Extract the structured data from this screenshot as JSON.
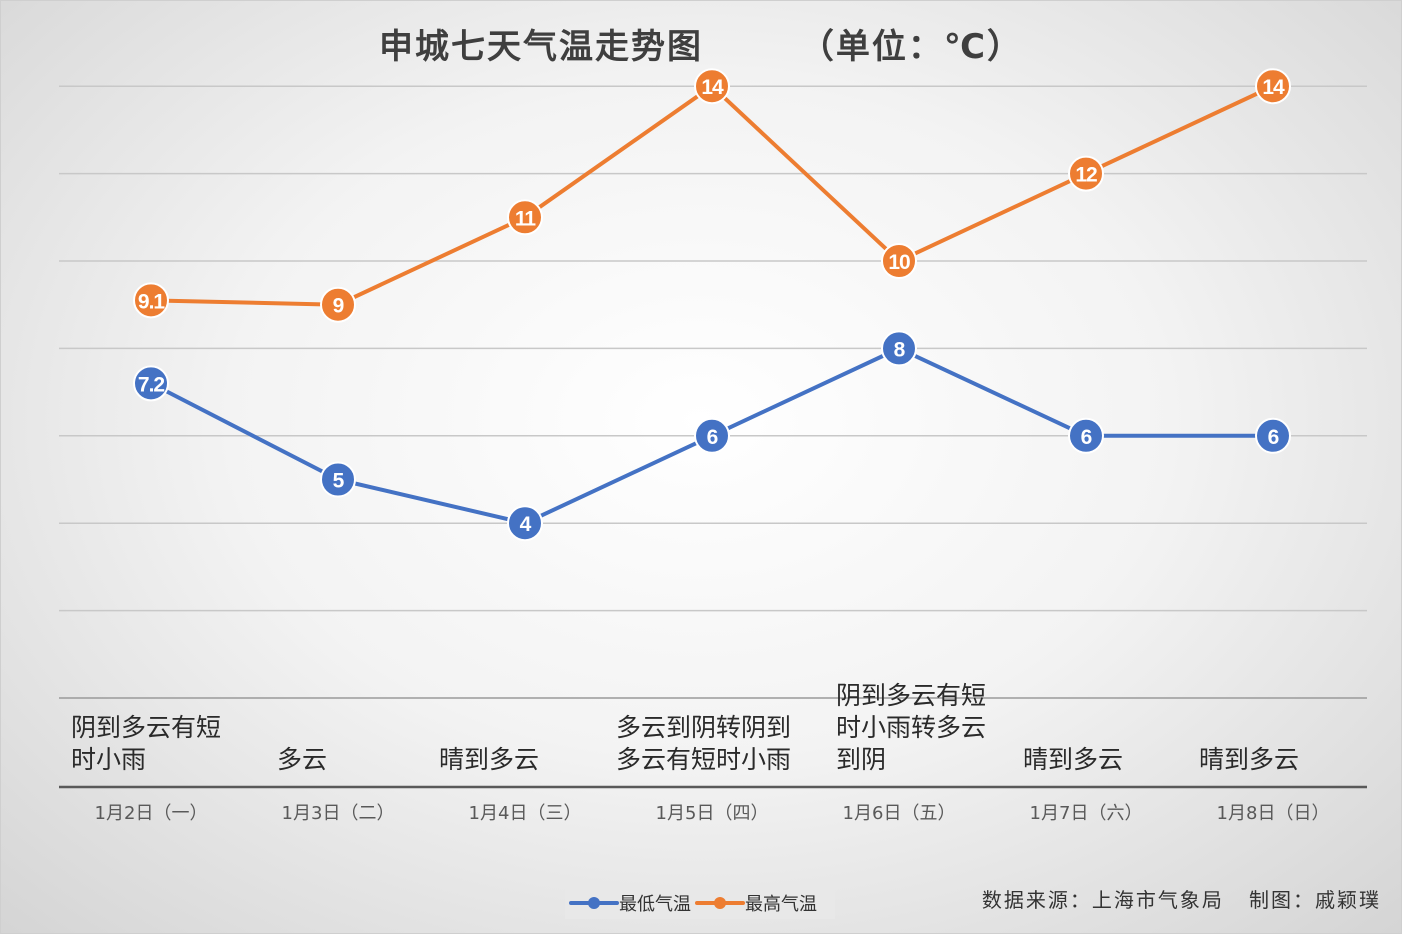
{
  "title": "申城七天气温走势图       （单位：℃）",
  "source_note": "数据来源：上海市气象局   制图：戚颖璞",
  "colors": {
    "min_series": "#4472c4",
    "max_series": "#ed7d31",
    "grid": "#c8c8c8",
    "axis": "#595959"
  },
  "chart_data": {
    "type": "line",
    "categories": [
      "1月2日（一）",
      "1月3日（二）",
      "1月4日（三）",
      "1月5日（四）",
      "1月6日（五）",
      "1月7日（六）",
      "1月8日（日）"
    ],
    "weather": [
      "阴到多云有短\n时小雨",
      "多云",
      "晴到多云",
      "多云到阴转阴到\n多云有短时小雨",
      "阴到多云有短\n时小雨转多云\n到阴",
      "晴到多云",
      "晴到多云"
    ],
    "series": [
      {
        "name": "最低气温",
        "values": [
          7.2,
          5,
          4,
          6,
          8,
          6,
          6
        ]
      },
      {
        "name": "最高气温",
        "values": [
          9.1,
          9,
          11,
          14,
          10,
          12,
          14
        ]
      }
    ],
    "ylim": [
      0,
      16
    ],
    "grid": true,
    "legend_position": "bottom"
  }
}
